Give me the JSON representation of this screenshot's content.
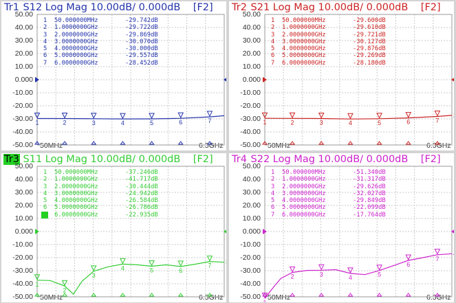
{
  "traces": [
    {
      "id": "tr1",
      "tr_label": "Tr1",
      "title_rest": " S12 Log Mag 10.00dB/ 0.000dB",
      "f_label": "[F2]",
      "color": "#2233aa",
      "active": false,
      "markers": [
        {
          "n": "1",
          "freq": "50.000000MHz",
          "val": "-29.742dB"
        },
        {
          "n": "2",
          "freq": "1.0000000GHz",
          "val": "-29.722dB"
        },
        {
          "n": "3",
          "freq": "2.0000000GHz",
          "val": "-29.869dB"
        },
        {
          "n": "4",
          "freq": "3.0000000GHz",
          "val": "-30.070dB"
        },
        {
          "n": "5",
          "freq": "4.0000000GHz",
          "val": "-30.000dB"
        },
        {
          "n": "6",
          "freq": "5.0000000GHz",
          "val": "-29.557dB"
        },
        {
          "n": "7",
          "freq": "6.0000000GHz",
          "val": "-28.452dB"
        }
      ],
      "end_label": "1"
    },
    {
      "id": "tr2",
      "tr_label": "Tr2",
      "title_rest": " S21 Log Mag 10.00dB/ 0.000dB",
      "f_label": "[F2]",
      "color": "#cc2222",
      "active": false,
      "markers": [
        {
          "n": "1",
          "freq": "50.000000MHz",
          "val": "-29.600dB"
        },
        {
          "n": "2",
          "freq": "1.0000000GHz",
          "val": "-29.610dB"
        },
        {
          "n": "3",
          "freq": "2.0000000GHz",
          "val": "-29.721dB"
        },
        {
          "n": "4",
          "freq": "3.0000000GHz",
          "val": "-30.127dB"
        },
        {
          "n": "5",
          "freq": "4.0000000GHz",
          "val": "-29.876dB"
        },
        {
          "n": "6",
          "freq": "5.0000000GHz",
          "val": "-29.269dB"
        },
        {
          "n": "7",
          "freq": "6.0000000GHz",
          "val": "-28.180dB"
        }
      ],
      "end_label": "2"
    },
    {
      "id": "tr3",
      "tr_label": "Tr3",
      "title_rest": " S11 Log Mag 10.00dB/ 0.000dB",
      "f_label": "[F2]",
      "color": "#33cc33",
      "active": true,
      "markers": [
        {
          "n": "1",
          "freq": "50.000000MHz",
          "val": "-37.246dB"
        },
        {
          "n": "2",
          "freq": "1.0000000GHz",
          "val": "-41.717dB"
        },
        {
          "n": "3",
          "freq": "2.0000000GHz",
          "val": "-30.444dB"
        },
        {
          "n": "4",
          "freq": "3.0000000GHz",
          "val": "-24.942dB"
        },
        {
          "n": "5",
          "freq": "4.0000000GHz",
          "val": "-26.584dB"
        },
        {
          "n": "6",
          "freq": "5.0000000GHz",
          "val": "-26.786dB"
        },
        {
          "n": "7",
          "freq": "6.0000000GHz",
          "val": "-22.935dB"
        }
      ],
      "end_label": "3"
    },
    {
      "id": "tr4",
      "tr_label": "Tr4",
      "title_rest": " S22 Log Mag 10.00dB/ 0.000dB",
      "f_label": "[F2]",
      "color": "#cc22cc",
      "active": false,
      "markers": [
        {
          "n": "1",
          "freq": "50.000000MHz",
          "val": "-51.340dB"
        },
        {
          "n": "2",
          "freq": "1.0000000GHz",
          "val": "-31.317dB"
        },
        {
          "n": "3",
          "freq": "2.0000000GHz",
          "val": "-29.626dB"
        },
        {
          "n": "4",
          "freq": "3.0000000GHz",
          "val": "-32.027dB"
        },
        {
          "n": "5",
          "freq": "4.0000000GHz",
          "val": "-29.849dB"
        },
        {
          "n": "6",
          "freq": "5.0000000GHz",
          "val": "-22.099dB"
        },
        {
          "n": "7",
          "freq": "6.0000000GHz",
          "val": "-17.764dB"
        }
      ],
      "end_label": "4"
    }
  ],
  "y_ticks": [
    "50.00",
    "40.00",
    "30.00",
    "20.00",
    "10.00",
    "0.000",
    "-10.00",
    "-20.00",
    "-30.00",
    "-40.00",
    "-50.00"
  ],
  "x_start": "50MHz",
  "x_stop": "6.5GHz",
  "chart_data": [
    {
      "type": "line",
      "title": "Tr1 S12 Log Mag 10.00dB/ 0.000dB",
      "ylim": [
        -50,
        50
      ],
      "x_units": "GHz",
      "xlim": [
        0.05,
        6.5
      ],
      "series": [
        {
          "name": "S12",
          "x": [
            0.05,
            1,
            2,
            3,
            4,
            5,
            6,
            6.5
          ],
          "y": [
            -29.742,
            -29.722,
            -29.869,
            -30.07,
            -30.0,
            -29.557,
            -28.452,
            -27.6
          ]
        }
      ]
    },
    {
      "type": "line",
      "title": "Tr2 S21 Log Mag 10.00dB/ 0.000dB",
      "ylim": [
        -50,
        50
      ],
      "x_units": "GHz",
      "xlim": [
        0.05,
        6.5
      ],
      "series": [
        {
          "name": "S21",
          "x": [
            0.05,
            1,
            2,
            3,
            4,
            5,
            6,
            6.5
          ],
          "y": [
            -29.6,
            -29.61,
            -29.721,
            -30.127,
            -29.876,
            -29.269,
            -28.18,
            -27.3
          ]
        }
      ]
    },
    {
      "type": "line",
      "title": "Tr3 S11 Log Mag 10.00dB/ 0.000dB",
      "ylim": [
        -50,
        50
      ],
      "x_units": "GHz",
      "xlim": [
        0.05,
        6.5
      ],
      "series": [
        {
          "name": "S11",
          "x": [
            0.05,
            0.5,
            1,
            1.3,
            1.6,
            2,
            2.5,
            3,
            3.5,
            4,
            4.5,
            5,
            5.5,
            6,
            6.5
          ],
          "y": [
            -37.246,
            -37.5,
            -41.717,
            -48,
            -38,
            -30.444,
            -27,
            -24.942,
            -25.5,
            -26.584,
            -25.5,
            -26.786,
            -25,
            -22.935,
            -23.5
          ]
        }
      ]
    },
    {
      "type": "line",
      "title": "Tr4 S22 Log Mag 10.00dB/ 0.000dB",
      "ylim": [
        -50,
        50
      ],
      "x_units": "GHz",
      "xlim": [
        0.05,
        6.5
      ],
      "series": [
        {
          "name": "S22",
          "x": [
            0.05,
            0.3,
            0.6,
            1,
            1.5,
            2,
            2.5,
            3,
            3.5,
            4,
            4.5,
            5,
            5.5,
            6,
            6.5
          ],
          "y": [
            -51.34,
            -44,
            -36,
            -31.317,
            -29.8,
            -29.626,
            -29.2,
            -32.027,
            -33,
            -29.849,
            -26,
            -22.099,
            -20,
            -17.764,
            -17
          ]
        }
      ]
    }
  ]
}
